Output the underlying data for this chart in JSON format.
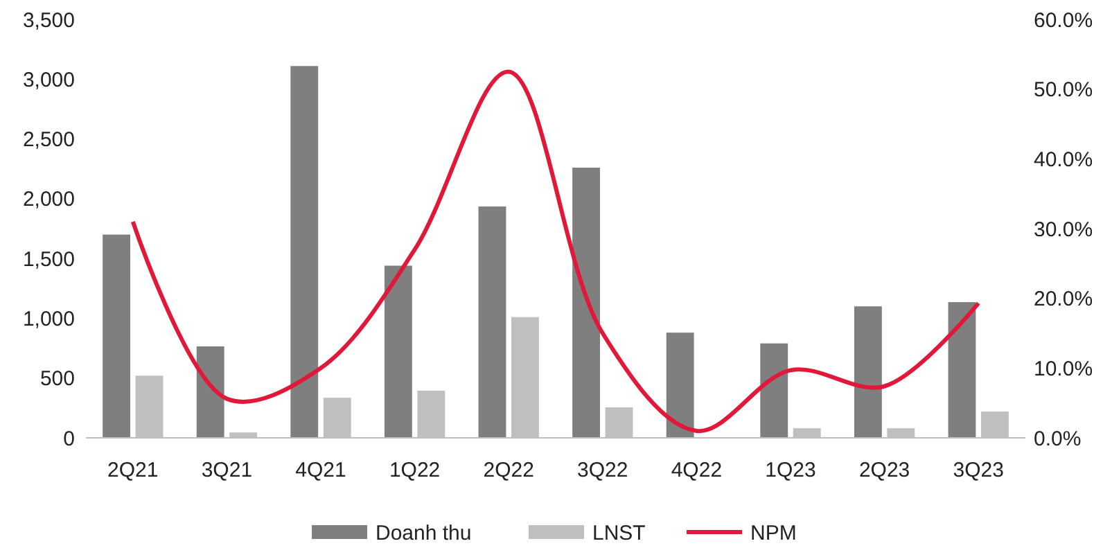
{
  "chart_data": {
    "type": "bar",
    "categories": [
      "2Q21",
      "3Q21",
      "4Q21",
      "1Q22",
      "2Q22",
      "3Q22",
      "4Q22",
      "1Q23",
      "2Q23",
      "3Q23"
    ],
    "series": [
      {
        "name": "Doanh thu",
        "color": "#7f7f7f",
        "values": [
          1700,
          765,
          3110,
          1440,
          1935,
          2260,
          880,
          790,
          1100,
          1135
        ]
      },
      {
        "name": "LNST",
        "color": "#bfbfbf",
        "values": [
          520,
          45,
          335,
          395,
          1010,
          255,
          5,
          80,
          80,
          220
        ]
      },
      {
        "name": "NPM",
        "type": "line",
        "axis": "y2",
        "color": "#e0193a",
        "values": [
          0.31,
          0.056,
          0.1,
          0.27,
          0.525,
          0.15,
          0.01,
          0.097,
          0.074,
          0.193
        ]
      }
    ],
    "ylim": [
      0,
      3500
    ],
    "yticks": [
      {
        "value": 0,
        "label": "0"
      },
      {
        "value": 500,
        "label": "500"
      },
      {
        "value": 1000,
        "label": "1,000"
      },
      {
        "value": 1500,
        "label": "1,500"
      },
      {
        "value": 2000,
        "label": "2,000"
      },
      {
        "value": 2500,
        "label": "2,500"
      },
      {
        "value": 3000,
        "label": "3,000"
      },
      {
        "value": 3500,
        "label": "3,500"
      }
    ],
    "y2lim": [
      0,
      0.6
    ],
    "y2ticks": [
      {
        "value": 0,
        "label": "0.0%"
      },
      {
        "value": 0.1,
        "label": "10.0%"
      },
      {
        "value": 0.2,
        "label": "20.0%"
      },
      {
        "value": 0.3,
        "label": "30.0%"
      },
      {
        "value": 0.4,
        "label": "40.0%"
      },
      {
        "value": 0.5,
        "label": "50.0%"
      },
      {
        "value": 0.6,
        "label": "60.0%"
      }
    ],
    "grid": false,
    "legend": "bottom",
    "marker": "none",
    "line_style": "solid"
  }
}
